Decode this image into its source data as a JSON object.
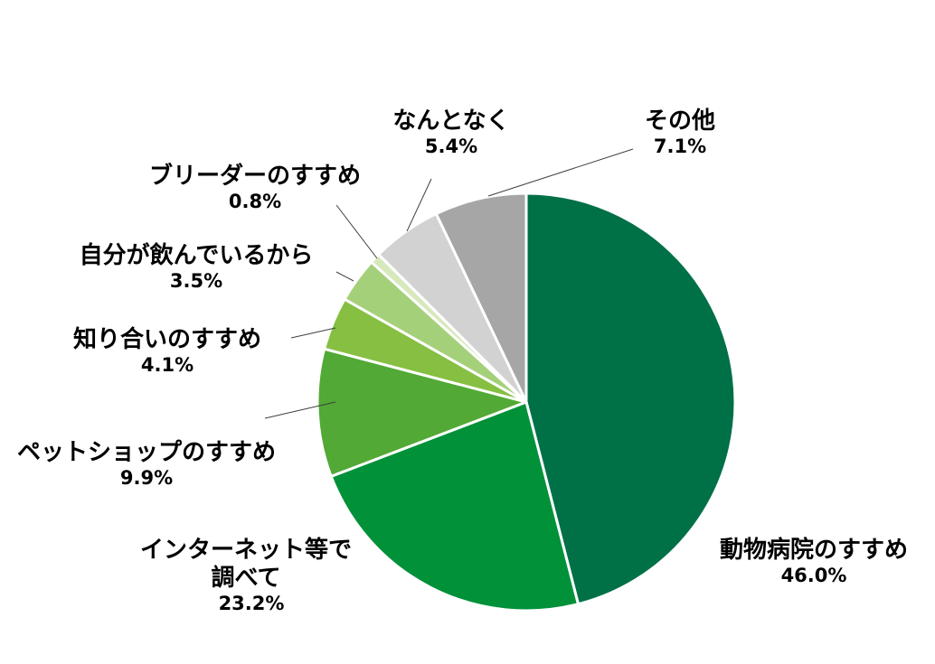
{
  "chart_data": {
    "type": "pie",
    "title": "",
    "start": "12 o'clock",
    "direction": "clockwise",
    "legend": "none",
    "slices": [
      {
        "id": "vet",
        "label": [
          "動物病院のすすめ"
        ],
        "value": 46.0,
        "value_label": "46.0%",
        "color": "#007047"
      },
      {
        "id": "internet",
        "label": [
          "インターネット等で",
          "調べて"
        ],
        "value": 23.2,
        "value_label": "23.2%",
        "color": "#009139"
      },
      {
        "id": "petshop",
        "label": [
          "ペットショップのすすめ"
        ],
        "value": 9.9,
        "value_label": "9.9%",
        "color": "#52a935"
      },
      {
        "id": "friend",
        "label": [
          "知り合いのすすめ"
        ],
        "value": 4.1,
        "value_label": "4.1%",
        "color": "#86bf42"
      },
      {
        "id": "bar",
        "label": [
          "自分が飲んでいるから"
        ],
        "value": 3.5,
        "value_label": "3.5%",
        "color": "#a5d07a"
      },
      {
        "id": "breeder",
        "label": [
          "ブリーダーのすすめ"
        ],
        "value": 0.8,
        "value_label": "0.8%",
        "color": "#d7e9bc"
      },
      {
        "id": "nantonaku",
        "label": [
          "なんとなく"
        ],
        "value": 5.4,
        "value_label": "5.4%",
        "color": "#d2d2d2"
      },
      {
        "id": "other",
        "label": [
          "その他"
        ],
        "value": 7.1,
        "value_label": "7.1%",
        "color": "#a6a6a6"
      }
    ]
  }
}
